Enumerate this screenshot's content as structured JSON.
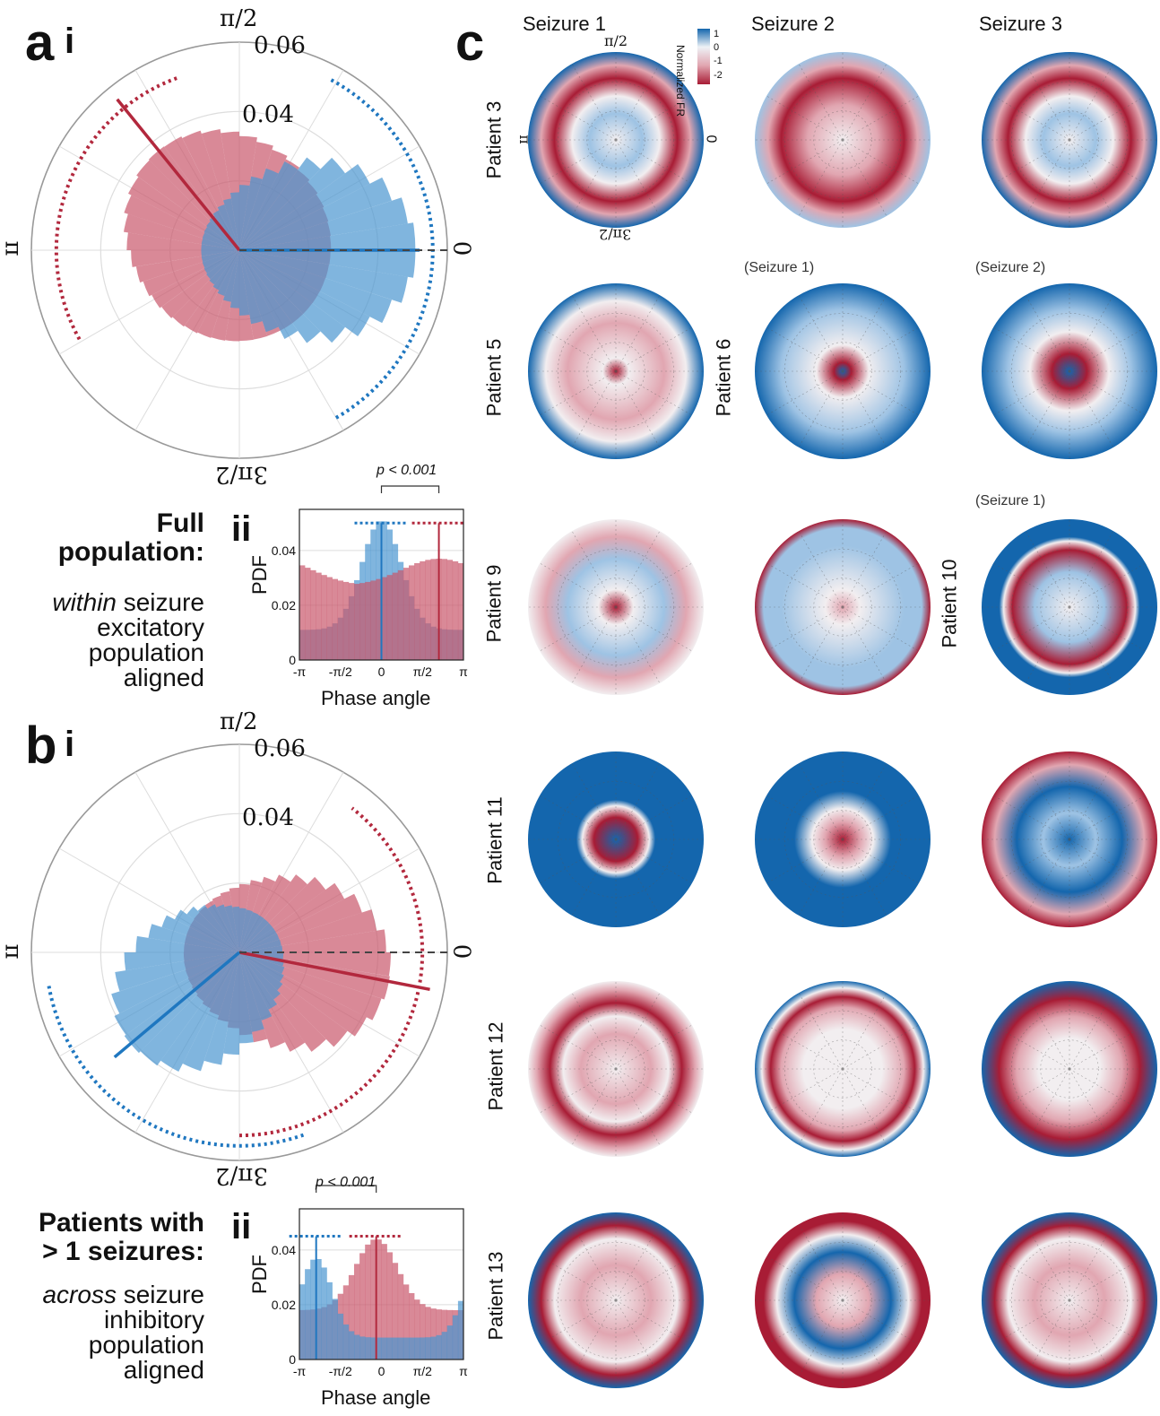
{
  "figure": {
    "panel_a": {
      "letter": "a",
      "sub_i": "i",
      "sub_ii": "ii",
      "heading": [
        "Full",
        "population:"
      ],
      "description": [
        "within seizure",
        "excitatory",
        "population",
        "aligned"
      ],
      "description_italic_word": "within"
    },
    "panel_b": {
      "letter": "b",
      "sub_i": "i",
      "sub_ii": "ii",
      "heading": [
        "Patients with",
        "> 1 seizures:"
      ],
      "description": [
        "across seizure",
        "inhibitory",
        "population",
        "aligned"
      ],
      "description_italic_word": "across"
    },
    "panel_c": {
      "letter": "c",
      "columns": [
        "Seizure 1",
        "Seizure 2",
        "Seizure 3"
      ],
      "colorbar_title": "Normalized FR",
      "colorbar_ticks": [
        "1",
        "0",
        "-1",
        "-2"
      ],
      "notes": {
        "p6s1": "(Seizure 1)",
        "p6s2": "(Seizure 2)",
        "p10s1": "(Seizure 1)"
      },
      "rows": [
        "Patient 3",
        "Patient 5",
        "Patient 6",
        "Patient 9",
        "Patient 10",
        "Patient 11",
        "Patient 12",
        "Patient 13"
      ],
      "angle_labels": {
        "top": "π/2",
        "left": "π",
        "right": "0",
        "bottom": "3π/2"
      }
    },
    "polar_labels": {
      "top": "π/2",
      "left": "π",
      "right": "0",
      "bottom": "3π/2",
      "r_outer": "0.06",
      "r_inner": "0.04"
    },
    "hist_labels": {
      "ylabel": "PDF",
      "xlabel": "Phase angle",
      "xticks": [
        "-π",
        "-π/2",
        "0",
        "π/2",
        "π"
      ],
      "yticks_a": [
        "0",
        "0.02",
        "0.04"
      ],
      "yticks_b": [
        "0",
        "0.02",
        "0.04"
      ],
      "pvalue": "p < 0.001"
    },
    "colors": {
      "red": "#b2283d",
      "blue": "#1f77c0",
      "red_fill": "#c9576b",
      "blue_fill": "#4a95d0",
      "overlap": "#6b3a6a"
    }
  },
  "chart_data": [
    {
      "type": "polar-histogram",
      "panel": "a i",
      "rlim": [
        0,
        0.06
      ],
      "rticks": [
        0.02,
        0.04,
        0.06
      ],
      "series": [
        {
          "name": "",
          "color": "red",
          "mean_angle_deg": 129,
          "min_r": 0.026,
          "max_r": 0.037,
          "mean_r": 0.056,
          "arc_deg": [
            110,
            210
          ]
        },
        {
          "name": "",
          "color": "blue",
          "mean_angle_deg": 0,
          "min_r": 0.011,
          "max_r": 0.051,
          "mean_r": 0.052,
          "arc_deg": [
            -60,
            62
          ]
        }
      ]
    },
    {
      "type": "bar",
      "panel": "a ii",
      "xlim": [
        -3.14159,
        3.14159
      ],
      "ylim": [
        0,
        0.055
      ],
      "pvalue": "p < 0.001",
      "series": [
        {
          "name": "",
          "color": "blue",
          "peak_x": 0,
          "peak_y": 0.051,
          "base_y": 0.011,
          "width": 0.75
        },
        {
          "name": "",
          "color": "red",
          "peak_x": 2.2,
          "peak_y": 0.037,
          "base_y": 0.027,
          "width": 1.4
        }
      ],
      "markers": [
        {
          "color": "blue",
          "x": 0,
          "y": 0.05
        },
        {
          "color": "red",
          "x": 2.2,
          "y": 0.05
        }
      ]
    },
    {
      "type": "polar-histogram",
      "panel": "b i",
      "rlim": [
        0,
        0.06
      ],
      "rticks": [
        0.02,
        0.04,
        0.06
      ],
      "series": [
        {
          "name": "",
          "color": "red",
          "mean_angle_deg": -11,
          "min_r": 0.016,
          "max_r": 0.044,
          "mean_r": 0.056,
          "arc_deg": [
            -90,
            52
          ]
        },
        {
          "name": "",
          "color": "blue",
          "mean_angle_deg": -140,
          "min_r": 0.012,
          "max_r": 0.041,
          "mean_r": 0.047,
          "arc_deg": [
            -170,
            -70
          ]
        }
      ]
    },
    {
      "type": "bar",
      "panel": "b ii",
      "xlim": [
        -3.14159,
        3.14159
      ],
      "ylim": [
        0,
        0.055
      ],
      "pvalue": "p < 0.001",
      "series": [
        {
          "name": "",
          "color": "red",
          "peak_x": -0.2,
          "peak_y": 0.044,
          "base_y": 0.018,
          "width": 0.8
        },
        {
          "name": "",
          "color": "blue",
          "peak_x": -2.5,
          "peak_y": 0.037,
          "base_y": 0.008,
          "width": 0.6
        }
      ],
      "markers": [
        {
          "color": "blue",
          "x": -2.5,
          "y": 0.045
        },
        {
          "color": "red",
          "x": -0.2,
          "y": 0.045
        }
      ]
    },
    {
      "type": "heatmap",
      "panel": "c",
      "colorbar_range": [
        -2,
        1
      ],
      "cells": [
        {
          "row": "Patient 3",
          "col": "Seizure 1",
          "style": "spiral-blue-red"
        },
        {
          "row": "Patient 3",
          "col": "Seizure 2",
          "style": "light-red-arc"
        },
        {
          "row": "Patient 3",
          "col": "Seizure 3",
          "style": "spiral-blue-red"
        },
        {
          "row": "Patient 5",
          "col": "Seizure 1",
          "style": "outer-blue-inner-red"
        },
        {
          "row": "Patient 6",
          "col": "Seizure 1",
          "style": "left-blue-center-red"
        },
        {
          "row": "Patient 6",
          "col": "Seizure 2",
          "style": "outer-blue-center-blue"
        },
        {
          "row": "Patient 9",
          "col": "Seizure 1",
          "style": "blue-arc-center-red"
        },
        {
          "row": "Patient 9",
          "col": "Seizure 2",
          "style": "pale-blue-bottom-red"
        },
        {
          "row": "Patient 10",
          "col": "Seizure 1",
          "style": "blue-with-red-ring"
        },
        {
          "row": "Patient 11",
          "col": "Seizure 1",
          "style": "blue-inner-red-ring"
        },
        {
          "row": "Patient 11",
          "col": "Seizure 2",
          "style": "blue-ring-center-red"
        },
        {
          "row": "Patient 11",
          "col": "Seizure 3",
          "style": "blue-left-red-right"
        },
        {
          "row": "Patient 12",
          "col": "Seizure 1",
          "style": "red-ring"
        },
        {
          "row": "Patient 12",
          "col": "Seizure 2",
          "style": "blue-outer-red-ring"
        },
        {
          "row": "Patient 12",
          "col": "Seizure 3",
          "style": "red-ring-blue-top"
        },
        {
          "row": "Patient 13",
          "col": "Seizure 1",
          "style": "blue-left-red-inner"
        },
        {
          "row": "Patient 13",
          "col": "Seizure 2",
          "style": "red-blue-mixed"
        },
        {
          "row": "Patient 13",
          "col": "Seizure 3",
          "style": "blue-left-red-inner"
        }
      ]
    }
  ]
}
